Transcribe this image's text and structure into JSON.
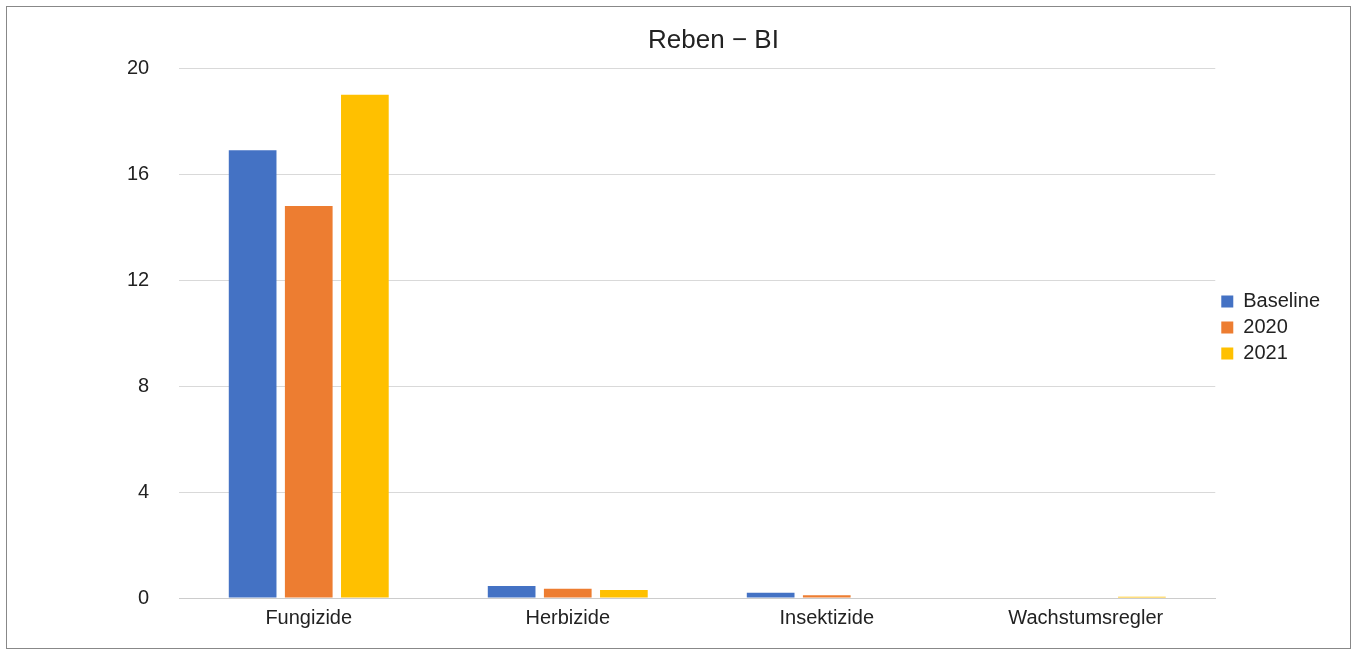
{
  "chart_data": {
    "type": "bar",
    "title": "Reben − BI",
    "categories": [
      "Fungizide",
      "Herbizide",
      "Insektizide",
      "Wachstumsregler"
    ],
    "series": [
      {
        "name": "Baseline",
        "color": "#4472c4",
        "values": [
          16.9,
          0.45,
          0.2,
          0
        ]
      },
      {
        "name": "2020",
        "color": "#ed7d31",
        "values": [
          14.8,
          0.35,
          0.1,
          0
        ]
      },
      {
        "name": "2021",
        "color": "#ffc000",
        "values": [
          19.0,
          0.3,
          0,
          0.05
        ]
      }
    ],
    "ylim": [
      0,
      20
    ],
    "yticks": [
      0,
      4,
      8,
      12,
      16,
      20
    ],
    "grid": "y",
    "legend": "right"
  }
}
